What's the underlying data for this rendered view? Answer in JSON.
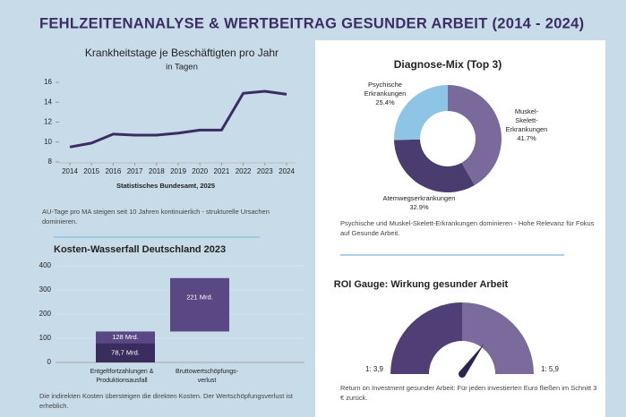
{
  "title": "FEHLZEITENANALYSE & WERTBEITRAG GESUNDER ARBEIT (2014 - 2024)",
  "chart_data": [
    {
      "type": "line",
      "title": "Krankheitstage je Beschäftigten pro Jahr",
      "subtitle": "in Tagen",
      "x": [
        2014,
        2015,
        2016,
        2017,
        2018,
        2019,
        2020,
        2021,
        2022,
        2023,
        2024
      ],
      "values": [
        9.5,
        9.9,
        10.8,
        10.7,
        10.7,
        10.9,
        11.2,
        11.2,
        14.9,
        15.1,
        14.8
      ],
      "color": "#3b2d63",
      "xlim": [
        2014,
        2024
      ],
      "xticks": [
        2014,
        2015,
        2016,
        2017,
        2018,
        2019,
        2020,
        2021,
        2022,
        2023,
        2024
      ],
      "ylim": [
        8,
        16
      ],
      "yticks": [
        8,
        10,
        12,
        14,
        16
      ],
      "source": "Statistisches Bundesamt, 2025",
      "note": "AU-Tage pro MA steigen seit 10 Jahren kontinuierlich - strukturelle Ursachen dominieren."
    },
    {
      "type": "waterfall",
      "title": "Kosten-Wasserfall Deutschland 2023",
      "steps": [
        {
          "category": "Entgeltfortzahlungen & Produktionsausfall",
          "value": 128,
          "value_label": "128 Mrd.",
          "color": "#5a4884",
          "parts": [
            {
              "value": 78.7,
              "value_label": "78,7 Mrd.",
              "color": "#3a2c5c"
            }
          ]
        },
        {
          "category": "Bruttowertschöpfungs-verlust",
          "value": 221,
          "value_label": "221 Mrd.",
          "color": "#5a4884"
        }
      ],
      "ylim": [
        0,
        400
      ],
      "yticks": [
        0,
        100,
        200,
        300,
        400
      ],
      "note": "Die indirekten Kosten übersteigen die direkten Kosten. Der Wertschöpfungsverlust ist erheblich."
    },
    {
      "type": "pie",
      "title": "Diagnose-Mix (Top 3)",
      "categories": [
        "Muskel-Skelett-Erkrankungen",
        "Atemwegserkrankungen",
        "Psychische Erkrankungen"
      ],
      "values": [
        41.7,
        32.9,
        25.4
      ],
      "value_labels": [
        "41.7%",
        "32.9%",
        "25.4%"
      ],
      "colors": [
        "#7a6a9c",
        "#4b3c70",
        "#8ec5e6"
      ],
      "note": "Psychische und Muskel-Skelett-Erkrankungen dominieren - Hohe Relevanz für Fokus auf Gesunde Arbeit."
    },
    {
      "type": "gauge",
      "title": "ROI Gauge: Wirkung gesunder Arbeit",
      "min": {
        "value": 3.9,
        "label": "1: 3,9"
      },
      "max": {
        "value": 5.9,
        "label": "1: 5,9"
      },
      "value": 5.3,
      "colors": [
        "#4f3f76",
        "#7b6a9c"
      ],
      "needle_color": "#2e2450",
      "note": "Return on Investment gesunder Arbeit: Für jeden investierten Euro fließen im Schnitt 3 € zurück."
    }
  ]
}
